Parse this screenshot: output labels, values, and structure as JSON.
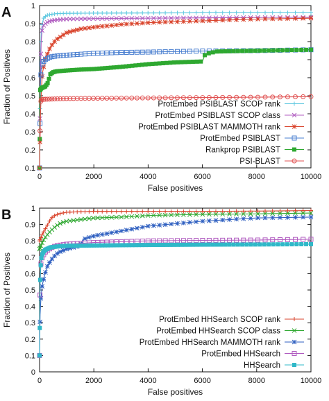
{
  "chart_data": [
    {
      "type": "line",
      "panel": "A",
      "xlabel": "False positives",
      "ylabel": "Fraction of Positives",
      "xlim": [
        0,
        10000
      ],
      "ylim": [
        0.1,
        1.0
      ],
      "xticks": [
        "0",
        "2000",
        "4000",
        "6000",
        "8000",
        "10000"
      ],
      "yticks": [
        "0.1",
        "0.2",
        "0.3",
        "0.4",
        "0.5",
        "0.6",
        "0.7",
        "0.8",
        "0.9",
        "1"
      ],
      "legend_position": "bottom-right",
      "series": [
        {
          "name": "ProtEmbed PSIBLAST SCOP rank",
          "color": "#5fc8e0",
          "marker": "plus",
          "x": [
            0,
            30,
            60,
            100,
            150,
            250,
            400,
            600,
            1000,
            2000,
            4000,
            6000,
            8000,
            10000
          ],
          "y": [
            0.1,
            0.7,
            0.85,
            0.9,
            0.93,
            0.945,
            0.95,
            0.955,
            0.957,
            0.958,
            0.959,
            0.96,
            0.96,
            0.96
          ]
        },
        {
          "name": "ProtEmbed PSIBLAST SCOP class",
          "color": "#b05cc0",
          "marker": "x",
          "x": [
            0,
            30,
            60,
            100,
            150,
            250,
            400,
            600,
            1000,
            2000,
            4000,
            6000,
            8000,
            10000
          ],
          "y": [
            0.1,
            0.6,
            0.8,
            0.87,
            0.89,
            0.905,
            0.915,
            0.92,
            0.925,
            0.928,
            0.93,
            0.932,
            0.934,
            0.935
          ]
        },
        {
          "name": "ProtEmbed PSIBLAST MAMMOTH rank",
          "color": "#d9432b",
          "marker": "star",
          "x": [
            0,
            40,
            100,
            200,
            400,
            600,
            1000,
            1500,
            2000,
            3000,
            4000,
            6000,
            8000,
            10000
          ],
          "y": [
            0.1,
            0.45,
            0.62,
            0.7,
            0.77,
            0.81,
            0.85,
            0.87,
            0.88,
            0.895,
            0.905,
            0.915,
            0.925,
            0.93
          ]
        },
        {
          "name": "ProtEmbed PSIBLAST",
          "color": "#4a7fd0",
          "marker": "square-open",
          "x": [
            0,
            30,
            60,
            100,
            200,
            400,
            600,
            1000,
            1500,
            2000,
            3000,
            4000,
            6000,
            8000,
            10000
          ],
          "y": [
            0.1,
            0.55,
            0.65,
            0.68,
            0.7,
            0.715,
            0.72,
            0.725,
            0.73,
            0.735,
            0.74,
            0.742,
            0.748,
            0.75,
            0.755
          ]
        },
        {
          "name": "Rankprop PSIBLAST",
          "color": "#2ea830",
          "marker": "square-filled",
          "x": [
            0,
            20,
            50,
            100,
            200,
            300,
            400,
            500,
            600,
            1000,
            1500,
            2000,
            3000,
            4000,
            5000,
            6000,
            6100,
            6500,
            8000,
            10000
          ],
          "y": [
            0.1,
            0.53,
            0.54,
            0.545,
            0.55,
            0.57,
            0.62,
            0.63,
            0.635,
            0.64,
            0.645,
            0.648,
            0.66,
            0.675,
            0.685,
            0.69,
            0.73,
            0.745,
            0.75,
            0.755
          ]
        },
        {
          "name": "PSI-BLAST",
          "color": "#e05050",
          "marker": "circle-open",
          "x": [
            0,
            20,
            50,
            100,
            500,
            1000,
            2000,
            4000,
            6000,
            8000,
            10000
          ],
          "y": [
            0.1,
            0.35,
            0.47,
            0.48,
            0.482,
            0.484,
            0.486,
            0.488,
            0.49,
            0.492,
            0.495
          ]
        }
      ]
    },
    {
      "type": "line",
      "panel": "B",
      "xlabel": "False positives",
      "ylabel": "Fraction of Positives",
      "xlim": [
        0,
        10000
      ],
      "ylim": [
        0.0,
        1.0
      ],
      "xticks": [
        "0",
        "2000",
        "4000",
        "6000",
        "8000",
        "10000"
      ],
      "yticks": [
        "0",
        "0.1",
        "0.2",
        "0.3",
        "0.4",
        "0.5",
        "0.6",
        "0.7",
        "0.8",
        "0.9",
        "1"
      ],
      "legend_position": "bottom-right",
      "series": [
        {
          "name": "ProtEmbed HHSearch SCOP rank",
          "color": "#d9432b",
          "marker": "plus",
          "x": [
            0,
            50,
            100,
            200,
            300,
            400,
            500,
            700,
            1000,
            1500,
            2000,
            4000,
            6000,
            8000,
            10000
          ],
          "y": [
            0.8,
            0.82,
            0.84,
            0.87,
            0.9,
            0.93,
            0.95,
            0.965,
            0.975,
            0.978,
            0.98,
            0.98,
            0.98,
            0.982,
            0.985
          ]
        },
        {
          "name": "ProtEmbed HHSearch SCOP class",
          "color": "#2ea830",
          "marker": "x",
          "x": [
            0,
            50,
            100,
            200,
            400,
            600,
            800,
            1000,
            1500,
            2000,
            3000,
            4000,
            6000,
            8000,
            10000
          ],
          "y": [
            0.75,
            0.77,
            0.79,
            0.82,
            0.86,
            0.89,
            0.91,
            0.92,
            0.93,
            0.94,
            0.945,
            0.955,
            0.962,
            0.965,
            0.97
          ]
        },
        {
          "name": "ProtEmbed HHSearch MAMMOTH rank",
          "color": "#2e5fc0",
          "marker": "star",
          "x": [
            0,
            20,
            50,
            100,
            200,
            300,
            500,
            700,
            1000,
            1500,
            1600,
            2000,
            3000,
            4000,
            6000,
            8000,
            10000
          ],
          "y": [
            0.1,
            0.35,
            0.45,
            0.53,
            0.6,
            0.65,
            0.7,
            0.73,
            0.75,
            0.77,
            0.81,
            0.83,
            0.86,
            0.89,
            0.92,
            0.94,
            0.945
          ]
        },
        {
          "name": "ProtEmbed HHSearch",
          "color": "#b05cc0",
          "marker": "square-open",
          "x": [
            0,
            20,
            50,
            100,
            200,
            400,
            600,
            1000,
            2000,
            4000,
            6000,
            8000,
            10000
          ],
          "y": [
            0.1,
            0.55,
            0.66,
            0.7,
            0.73,
            0.755,
            0.77,
            0.78,
            0.79,
            0.8,
            0.803,
            0.805,
            0.81
          ]
        },
        {
          "name": "HHSearch",
          "color": "#30b8c8",
          "marker": "square-filled",
          "x": [
            0,
            20,
            50,
            100,
            200,
            400,
            600,
            1000,
            2000,
            4000,
            6000,
            8000,
            10000
          ],
          "y": [
            0.1,
            0.55,
            0.68,
            0.72,
            0.745,
            0.76,
            0.765,
            0.77,
            0.772,
            0.775,
            0.777,
            0.778,
            0.78
          ]
        }
      ]
    }
  ]
}
